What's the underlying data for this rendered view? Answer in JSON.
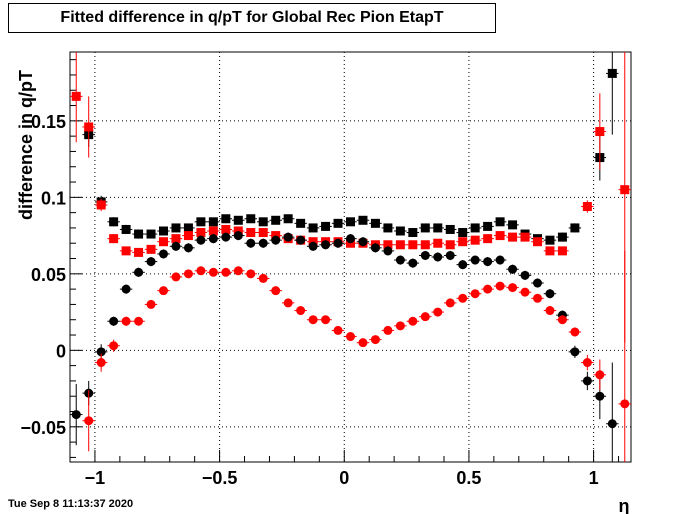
{
  "title": "Fitted difference in q/pT for Global Rec Pion EtapT",
  "timestamp": "Tue Sep  8 11:13:37 2020",
  "chart_data": {
    "type": "scatter",
    "title": "Fitted difference in q/pT for Global Rec Pion EtapT",
    "xlabel": "η",
    "ylabel": "difference in q/pT",
    "xlim": [
      -1.1,
      1.15
    ],
    "ylim": [
      -0.073,
      0.195
    ],
    "grid": true,
    "x_ticks": [
      -1,
      -0.5,
      0,
      0.5,
      1
    ],
    "x_tick_labels": [
      "−1",
      "−0.5",
      "0",
      "0.5",
      "1"
    ],
    "y_ticks": [
      -0.05,
      0,
      0.05,
      0.1,
      0.15
    ],
    "y_tick_labels": [
      "−0.05",
      "0",
      "0.05",
      "0.1",
      "0.15"
    ],
    "series": [
      {
        "marker": "square",
        "color": "#000000",
        "points": [
          [
            -1.025,
            0.141,
            0.008
          ],
          [
            -0.975,
            0.097,
            0.004
          ],
          [
            -0.925,
            0.084,
            0.003
          ],
          [
            -0.875,
            0.079,
            0.003
          ],
          [
            -0.825,
            0.076,
            0.003
          ],
          [
            -0.775,
            0.076,
            0.002
          ],
          [
            -0.725,
            0.078,
            0.002
          ],
          [
            -0.675,
            0.08,
            0.002
          ],
          [
            -0.625,
            0.08,
            0.002
          ],
          [
            -0.575,
            0.084,
            0.002
          ],
          [
            -0.525,
            0.084,
            0.002
          ],
          [
            -0.475,
            0.086,
            0.002
          ],
          [
            -0.425,
            0.085,
            0.002
          ],
          [
            -0.375,
            0.086,
            0.002
          ],
          [
            -0.325,
            0.084,
            0.002
          ],
          [
            -0.275,
            0.085,
            0.002
          ],
          [
            -0.225,
            0.086,
            0.002
          ],
          [
            -0.175,
            0.083,
            0.002
          ],
          [
            -0.125,
            0.08,
            0.002
          ],
          [
            -0.075,
            0.081,
            0.002
          ],
          [
            -0.025,
            0.083,
            0.002
          ],
          [
            0.025,
            0.084,
            0.002
          ],
          [
            0.075,
            0.085,
            0.002
          ],
          [
            0.125,
            0.083,
            0.002
          ],
          [
            0.175,
            0.08,
            0.002
          ],
          [
            0.225,
            0.078,
            0.002
          ],
          [
            0.275,
            0.077,
            0.002
          ],
          [
            0.325,
            0.08,
            0.002
          ],
          [
            0.375,
            0.08,
            0.002
          ],
          [
            0.425,
            0.079,
            0.002
          ],
          [
            0.475,
            0.077,
            0.002
          ],
          [
            0.525,
            0.08,
            0.002
          ],
          [
            0.575,
            0.081,
            0.002
          ],
          [
            0.625,
            0.084,
            0.002
          ],
          [
            0.675,
            0.082,
            0.002
          ],
          [
            0.725,
            0.076,
            0.002
          ],
          [
            0.775,
            0.073,
            0.002
          ],
          [
            0.825,
            0.072,
            0.002
          ],
          [
            0.875,
            0.074,
            0.003
          ],
          [
            0.925,
            0.08,
            0.003
          ],
          [
            1.025,
            0.126,
            0.015
          ],
          [
            1.075,
            0.181,
            0.04
          ]
        ]
      },
      {
        "marker": "square",
        "color": "#ff0000",
        "points": [
          [
            -1.075,
            0.166,
            0.03
          ],
          [
            -1.025,
            0.146,
            0.02
          ],
          [
            -0.975,
            0.095,
            0.004
          ],
          [
            -0.925,
            0.073,
            0.003
          ],
          [
            -0.875,
            0.065,
            0.002
          ],
          [
            -0.825,
            0.064,
            0.002
          ],
          [
            -0.775,
            0.066,
            0.002
          ],
          [
            -0.725,
            0.071,
            0.002
          ],
          [
            -0.675,
            0.073,
            0.002
          ],
          [
            -0.625,
            0.075,
            0.002
          ],
          [
            -0.575,
            0.077,
            0.002
          ],
          [
            -0.525,
            0.078,
            0.002
          ],
          [
            -0.475,
            0.079,
            0.002
          ],
          [
            -0.425,
            0.078,
            0.002
          ],
          [
            -0.375,
            0.077,
            0.002
          ],
          [
            -0.325,
            0.077,
            0.002
          ],
          [
            -0.275,
            0.075,
            0.002
          ],
          [
            -0.225,
            0.073,
            0.002
          ],
          [
            -0.175,
            0.072,
            0.002
          ],
          [
            -0.125,
            0.071,
            0.002
          ],
          [
            -0.075,
            0.071,
            0.002
          ],
          [
            -0.025,
            0.071,
            0.002
          ],
          [
            0.025,
            0.07,
            0.002
          ],
          [
            0.075,
            0.07,
            0.002
          ],
          [
            0.125,
            0.069,
            0.002
          ],
          [
            0.175,
            0.069,
            0.002
          ],
          [
            0.225,
            0.069,
            0.002
          ],
          [
            0.275,
            0.069,
            0.002
          ],
          [
            0.325,
            0.069,
            0.002
          ],
          [
            0.375,
            0.07,
            0.002
          ],
          [
            0.425,
            0.069,
            0.002
          ],
          [
            0.475,
            0.071,
            0.002
          ],
          [
            0.525,
            0.072,
            0.002
          ],
          [
            0.575,
            0.073,
            0.002
          ],
          [
            0.625,
            0.075,
            0.002
          ],
          [
            0.675,
            0.074,
            0.002
          ],
          [
            0.725,
            0.074,
            0.002
          ],
          [
            0.775,
            0.071,
            0.002
          ],
          [
            0.825,
            0.065,
            0.002
          ],
          [
            0.875,
            0.065,
            0.002
          ],
          [
            0.975,
            0.094,
            0.004
          ],
          [
            1.025,
            0.143,
            0.025
          ],
          [
            1.125,
            0.105,
            0.1
          ]
        ]
      },
      {
        "marker": "circle",
        "color": "#000000",
        "points": [
          [
            -1.075,
            -0.042,
            0.02
          ],
          [
            -1.025,
            -0.028,
            0.008
          ],
          [
            -0.975,
            -0.001,
            0.005
          ],
          [
            -0.925,
            0.019,
            0.003
          ],
          [
            -0.875,
            0.04,
            0.003
          ],
          [
            -0.825,
            0.051,
            0.003
          ],
          [
            -0.775,
            0.058,
            0.003
          ],
          [
            -0.725,
            0.063,
            0.003
          ],
          [
            -0.675,
            0.068,
            0.003
          ],
          [
            -0.625,
            0.067,
            0.003
          ],
          [
            -0.575,
            0.072,
            0.003
          ],
          [
            -0.525,
            0.073,
            0.003
          ],
          [
            -0.475,
            0.074,
            0.003
          ],
          [
            -0.425,
            0.075,
            0.003
          ],
          [
            -0.375,
            0.07,
            0.003
          ],
          [
            -0.325,
            0.07,
            0.003
          ],
          [
            -0.275,
            0.072,
            0.003
          ],
          [
            -0.225,
            0.074,
            0.003
          ],
          [
            -0.175,
            0.072,
            0.003
          ],
          [
            -0.125,
            0.068,
            0.003
          ],
          [
            -0.075,
            0.069,
            0.003
          ],
          [
            -0.025,
            0.07,
            0.003
          ],
          [
            0.025,
            0.073,
            0.003
          ],
          [
            0.075,
            0.071,
            0.003
          ],
          [
            0.125,
            0.067,
            0.003
          ],
          [
            0.175,
            0.065,
            0.003
          ],
          [
            0.225,
            0.059,
            0.003
          ],
          [
            0.275,
            0.057,
            0.003
          ],
          [
            0.325,
            0.062,
            0.003
          ],
          [
            0.375,
            0.061,
            0.003
          ],
          [
            0.425,
            0.062,
            0.003
          ],
          [
            0.475,
            0.056,
            0.003
          ],
          [
            0.525,
            0.059,
            0.003
          ],
          [
            0.575,
            0.058,
            0.003
          ],
          [
            0.625,
            0.059,
            0.003
          ],
          [
            0.675,
            0.053,
            0.003
          ],
          [
            0.725,
            0.049,
            0.003
          ],
          [
            0.775,
            0.044,
            0.003
          ],
          [
            0.825,
            0.037,
            0.003
          ],
          [
            0.875,
            0.023,
            0.003
          ],
          [
            0.925,
            -0.001,
            0.004
          ],
          [
            0.975,
            -0.02,
            0.006
          ],
          [
            1.025,
            -0.03,
            0.015
          ],
          [
            1.075,
            -0.048,
            0.04
          ]
        ]
      },
      {
        "marker": "circle",
        "color": "#ff0000",
        "points": [
          [
            -1.025,
            -0.046,
            0.02
          ],
          [
            -0.975,
            -0.008,
            0.006
          ],
          [
            -0.925,
            0.003,
            0.004
          ],
          [
            -0.875,
            0.019,
            0.003
          ],
          [
            -0.825,
            0.019,
            0.002
          ],
          [
            -0.775,
            0.03,
            0.002
          ],
          [
            -0.725,
            0.039,
            0.002
          ],
          [
            -0.675,
            0.048,
            0.002
          ],
          [
            -0.625,
            0.05,
            0.002
          ],
          [
            -0.575,
            0.052,
            0.002
          ],
          [
            -0.525,
            0.051,
            0.002
          ],
          [
            -0.475,
            0.051,
            0.002
          ],
          [
            -0.425,
            0.052,
            0.002
          ],
          [
            -0.375,
            0.05,
            0.002
          ],
          [
            -0.325,
            0.047,
            0.002
          ],
          [
            -0.275,
            0.039,
            0.002
          ],
          [
            -0.225,
            0.031,
            0.002
          ],
          [
            -0.175,
            0.026,
            0.002
          ],
          [
            -0.125,
            0.02,
            0.002
          ],
          [
            -0.075,
            0.02,
            0.002
          ],
          [
            -0.025,
            0.013,
            0.002
          ],
          [
            0.025,
            0.009,
            0.002
          ],
          [
            0.075,
            0.005,
            0.002
          ],
          [
            0.125,
            0.007,
            0.002
          ],
          [
            0.175,
            0.013,
            0.002
          ],
          [
            0.225,
            0.016,
            0.002
          ],
          [
            0.275,
            0.019,
            0.002
          ],
          [
            0.325,
            0.022,
            0.002
          ],
          [
            0.375,
            0.025,
            0.002
          ],
          [
            0.425,
            0.031,
            0.002
          ],
          [
            0.475,
            0.034,
            0.002
          ],
          [
            0.525,
            0.037,
            0.002
          ],
          [
            0.575,
            0.04,
            0.002
          ],
          [
            0.625,
            0.042,
            0.002
          ],
          [
            0.675,
            0.041,
            0.002
          ],
          [
            0.725,
            0.038,
            0.002
          ],
          [
            0.775,
            0.034,
            0.002
          ],
          [
            0.825,
            0.026,
            0.002
          ],
          [
            0.875,
            0.02,
            0.002
          ],
          [
            0.925,
            0.012,
            0.003
          ],
          [
            0.975,
            -0.008,
            0.005
          ],
          [
            1.025,
            -0.016,
            0.01
          ],
          [
            1.125,
            -0.035,
            0.1
          ]
        ]
      }
    ]
  }
}
